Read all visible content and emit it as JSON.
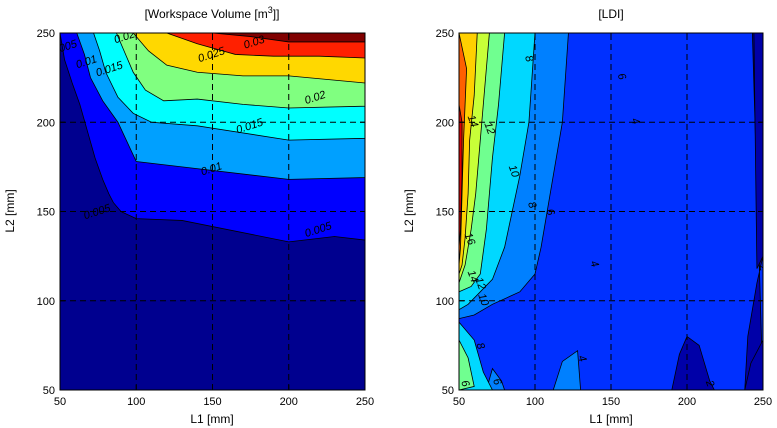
{
  "chart_data": [
    {
      "type": "contour",
      "title_main": "[Workspace Volume [m",
      "title_sup": "3",
      "title_end": "]]",
      "xlabel": "L1 [mm]",
      "ylabel": "L2 [mm]",
      "xlim": [
        50,
        250
      ],
      "ylim": [
        50,
        250
      ],
      "xticks": [
        50,
        100,
        150,
        200,
        250
      ],
      "yticks": [
        50,
        100,
        150,
        200,
        250
      ],
      "grid": true,
      "level_labels": [
        {
          "text": "0.03",
          "x": 178,
          "y": 243
        },
        {
          "text": "0.025",
          "x": 150,
          "y": 236
        },
        {
          "text": "0.02",
          "x": 218,
          "y": 212
        },
        {
          "text": "0.015",
          "x": 175,
          "y": 196
        },
        {
          "text": "0.01",
          "x": 150,
          "y": 172
        },
        {
          "text": "0.005",
          "x": 220,
          "y": 138
        },
        {
          "text": "0.005",
          "x": 75,
          "y": 148
        },
        {
          "text": "0.015",
          "x": 83,
          "y": 228
        },
        {
          "text": "0.01",
          "x": 68,
          "y": 232
        },
        {
          "text": "0.005",
          "x": 53,
          "y": 240
        },
        {
          "text": "0.02",
          "x": 93,
          "y": 246
        }
      ],
      "bands": [
        {
          "level": 0.0,
          "color": "#00008f",
          "x": [
            50,
            53,
            58,
            63,
            68,
            73,
            78,
            82,
            85,
            90,
            100,
            130,
            200,
            230,
            250
          ],
          "y": [
            250,
            235,
            222,
            210,
            195,
            180,
            168,
            160,
            155,
            150,
            146,
            145,
            133,
            136,
            134
          ]
        },
        {
          "level": 0.005,
          "color": "#0000ff",
          "x": [
            50,
            61,
            66,
            70,
            78,
            88,
            100,
            130,
            200,
            250
          ],
          "y": [
            250,
            250,
            238,
            225,
            212,
            200,
            178,
            175,
            168,
            169
          ]
        },
        {
          "level": 0.01,
          "color": "#00a0ff",
          "x": [
            50,
            72,
            76,
            80,
            88,
            98,
            110,
            140,
            200,
            250
          ],
          "y": [
            250,
            250,
            240,
            228,
            214,
            205,
            200,
            198,
            190,
            191
          ]
        },
        {
          "level": 0.015,
          "color": "#00ffff",
          "x": [
            50,
            87,
            92,
            98,
            106,
            118,
            140,
            170,
            200,
            250
          ],
          "y": [
            250,
            250,
            240,
            228,
            218,
            212,
            213,
            210,
            208,
            209
          ]
        },
        {
          "level": 0.02,
          "color": "#80ff80",
          "x": [
            50,
            98,
            108,
            120,
            140,
            170,
            200,
            250
          ],
          "y": [
            250,
            250,
            240,
            232,
            228,
            226,
            226,
            222
          ]
        },
        {
          "level": 0.025,
          "color": "#ffd800",
          "x": [
            50,
            120,
            140,
            165,
            190,
            220,
            250
          ],
          "y": [
            250,
            250,
            244,
            238,
            237,
            237,
            236
          ]
        },
        {
          "level": 0.03,
          "color": "#ff2000",
          "x": [
            50,
            150,
            175,
            200,
            250
          ],
          "y": [
            250,
            250,
            248,
            245,
            245
          ]
        }
      ],
      "top_color": "#800000"
    },
    {
      "type": "contour",
      "title_main": "[LDI]",
      "xlabel": "L1 [mm]",
      "ylabel": "L2 [mm]",
      "xlim": [
        50,
        250
      ],
      "ylim": [
        50,
        250
      ],
      "xticks": [
        50,
        100,
        150,
        200,
        250
      ],
      "yticks": [
        50,
        100,
        150,
        200,
        250
      ],
      "grid": true,
      "level_labels": [
        {
          "text": "6",
          "x": 155,
          "y": 225
        },
        {
          "text": "4",
          "x": 164,
          "y": 200
        },
        {
          "text": "8",
          "x": 94,
          "y": 235
        },
        {
          "text": "10",
          "x": 84,
          "y": 172
        },
        {
          "text": "12",
          "x": 68,
          "y": 196
        },
        {
          "text": "14",
          "x": 57,
          "y": 200
        },
        {
          "text": "8",
          "x": 96,
          "y": 153
        },
        {
          "text": "6",
          "x": 108,
          "y": 149
        },
        {
          "text": "16",
          "x": 55,
          "y": 134
        },
        {
          "text": "14",
          "x": 57,
          "y": 113
        },
        {
          "text": "12",
          "x": 62,
          "y": 109
        },
        {
          "text": "10",
          "x": 64,
          "y": 100
        },
        {
          "text": "8",
          "x": 62,
          "y": 74
        },
        {
          "text": "6",
          "x": 73,
          "y": 54
        },
        {
          "text": "4",
          "x": 137,
          "y": 120
        },
        {
          "text": "4",
          "x": 129,
          "y": 67
        },
        {
          "text": "2",
          "x": 248,
          "y": 118
        },
        {
          "text": "2",
          "x": 213,
          "y": 53
        },
        {
          "text": "6",
          "x": 52,
          "y": 53
        }
      ],
      "bands": [
        {
          "level": 0,
          "color": "#0000a8",
          "x": [
            50,
            250
          ],
          "y": [
            250,
            250
          ]
        },
        {
          "level": 2,
          "color": "#0030ff",
          "x": [
            50,
            250
          ],
          "y": [
            250,
            250
          ]
        },
        {
          "level": 4,
          "color": "#0080ff",
          "x": [
            50,
            122,
            118,
            112,
            108,
            104,
            100,
            90,
            72,
            60,
            50
          ],
          "y": [
            250,
            250,
            200,
            170,
            150,
            130,
            115,
            105,
            98,
            92,
            90
          ]
        },
        {
          "level": 6,
          "color": "#00d8ff",
          "x": [
            50,
            100,
            96,
            90,
            85,
            80,
            72,
            64,
            56,
            50
          ],
          "y": [
            250,
            250,
            200,
            170,
            150,
            130,
            112,
            105,
            98,
            95
          ]
        },
        {
          "level": 8,
          "color": "#70ff90",
          "x": [
            50,
            80,
            76,
            72,
            70,
            68,
            64,
            58,
            50
          ],
          "y": [
            250,
            250,
            210,
            180,
            160,
            140,
            115,
            108,
            105
          ]
        },
        {
          "level": 10,
          "color": "#c8ff38",
          "x": [
            50,
            70,
            66,
            63,
            61,
            58,
            54,
            50
          ],
          "y": [
            250,
            250,
            210,
            180,
            160,
            140,
            120,
            110
          ]
        },
        {
          "level": 12,
          "color": "#ffd000",
          "x": [
            50,
            62,
            60,
            57,
            56,
            54,
            52,
            50
          ],
          "y": [
            250,
            250,
            215,
            190,
            160,
            135,
            120,
            115
          ]
        },
        {
          "level": 14,
          "color": "#ff6000",
          "x": [
            50,
            55,
            54,
            53,
            52,
            51,
            50
          ],
          "y": [
            250,
            230,
            210,
            190,
            160,
            130,
            120
          ]
        },
        {
          "level": 16,
          "color": "#e00000",
          "x": [
            50,
            52,
            52,
            51,
            50
          ],
          "y": [
            210,
            200,
            170,
            140,
            130
          ]
        }
      ]
    }
  ]
}
